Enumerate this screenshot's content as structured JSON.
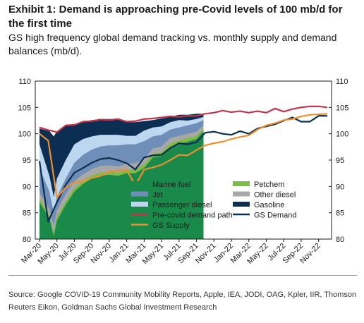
{
  "title": "Exhibit 1: Demand is approaching pre-Covid levels of 100 mb/d for the first time",
  "subtitle": "GS high frequency global demand tracking vs. monthly supply and demand balances (mb/d).",
  "source": "Source: Google COVID-19 Community Mobility Reports, Apple, IEA, JODI, OAG, Kpler, IIR, Thomson Reuters Eikon, Goldman Sachs Global Investment Research",
  "chart_data": {
    "type": "area",
    "title": "",
    "xlabel": "",
    "ylabel": "",
    "ylim": [
      80,
      110
    ],
    "yticks": [
      80,
      85,
      90,
      95,
      100,
      105,
      110
    ],
    "xlim": [
      "2020-03",
      "2022-12"
    ],
    "x_tick_labels": [
      "Mar-20",
      "May-20",
      "Jul-20",
      "Sep-20",
      "Nov-20",
      "Jan-21",
      "Mar-21",
      "May-21",
      "Jul-21",
      "Sep-21",
      "Nov-21",
      "Jan-22",
      "Mar-22",
      "May-22",
      "Jul-22",
      "Sep-22",
      "Nov-22"
    ],
    "grid": false,
    "legend": "inside-bottom-center",
    "stack_order_note": "stacked cumulative totals, bottom to top",
    "stacked_series": [
      {
        "name": "Marine fuel",
        "color": "#1a8a4a",
        "cumulative": [
          [
            "2020-03",
            87.0
          ],
          [
            "2020-04-05",
            84.0
          ],
          [
            "2020-04-20",
            80.5
          ],
          [
            "2020-05",
            83.5
          ],
          [
            "2020-06",
            86.5
          ],
          [
            "2020-07",
            89.0
          ],
          [
            "2020-08",
            90.5
          ],
          [
            "2020-09",
            91.5
          ],
          [
            "2020-10",
            92.0
          ],
          [
            "2020-11",
            92.2
          ],
          [
            "2020-12",
            92.0
          ],
          [
            "2021-01",
            92.5
          ],
          [
            "2021-02",
            92.5
          ],
          [
            "2021-03",
            93.5
          ],
          [
            "2021-04",
            95.5
          ],
          [
            "2021-05",
            95.8
          ],
          [
            "2021-06",
            97.5
          ],
          [
            "2021-07",
            98.0
          ],
          [
            "2021-08",
            98.5
          ],
          [
            "2021-09",
            99.0
          ],
          [
            "2021-09-25",
            100.5
          ]
        ]
      },
      {
        "name": "Petchem",
        "color": "#7dbb46",
        "cumulative": [
          [
            "2020-03",
            87.6
          ],
          [
            "2020-04-05",
            84.6
          ],
          [
            "2020-04-20",
            81.2
          ],
          [
            "2020-05",
            84.2
          ],
          [
            "2020-06",
            87.2
          ],
          [
            "2020-07",
            89.7
          ],
          [
            "2020-08",
            91.1
          ],
          [
            "2020-09",
            92.1
          ],
          [
            "2020-10",
            92.6
          ],
          [
            "2020-11",
            92.8
          ],
          [
            "2020-12",
            92.6
          ],
          [
            "2021-01",
            93.1
          ],
          [
            "2021-02",
            93.2
          ],
          [
            "2021-03",
            94.2
          ],
          [
            "2021-04",
            96.2
          ],
          [
            "2021-05",
            96.5
          ],
          [
            "2021-06",
            98.2
          ],
          [
            "2021-07",
            98.7
          ],
          [
            "2021-08",
            99.2
          ],
          [
            "2021-09",
            99.6
          ],
          [
            "2021-09-25",
            101.0
          ]
        ]
      },
      {
        "name": "Other diesel",
        "color": "#a8a8a8",
        "cumulative": [
          [
            "2020-03",
            88.8
          ],
          [
            "2020-04-05",
            85.8
          ],
          [
            "2020-04-20",
            82.5
          ],
          [
            "2020-05",
            85.5
          ],
          [
            "2020-06",
            88.5
          ],
          [
            "2020-07",
            91.0
          ],
          [
            "2020-08",
            92.3
          ],
          [
            "2020-09",
            93.3
          ],
          [
            "2020-10",
            93.9
          ],
          [
            "2020-11",
            94.0
          ],
          [
            "2020-12",
            93.8
          ],
          [
            "2021-01",
            94.3
          ],
          [
            "2021-02",
            94.4
          ],
          [
            "2021-03",
            95.3
          ],
          [
            "2021-04",
            97.2
          ],
          [
            "2021-05",
            97.6
          ],
          [
            "2021-06",
            99.2
          ],
          [
            "2021-07",
            99.6
          ],
          [
            "2021-08",
            100.0
          ],
          [
            "2021-09",
            100.4
          ],
          [
            "2021-09-25",
            101.6
          ]
        ]
      },
      {
        "name": "Jet",
        "color": "#6f8fb8",
        "cumulative": [
          [
            "2020-03",
            93.5
          ],
          [
            "2020-04-05",
            89.0
          ],
          [
            "2020-04-20",
            85.0
          ],
          [
            "2020-05",
            88.0
          ],
          [
            "2020-06",
            91.5
          ],
          [
            "2020-07",
            94.5
          ],
          [
            "2020-08",
            96.0
          ],
          [
            "2020-09",
            97.0
          ],
          [
            "2020-10",
            97.6
          ],
          [
            "2020-11",
            97.8
          ],
          [
            "2020-12",
            97.8
          ],
          [
            "2021-01",
            98.0
          ],
          [
            "2021-02",
            98.0
          ],
          [
            "2021-03",
            98.6
          ],
          [
            "2021-04",
            99.5
          ],
          [
            "2021-05",
            99.8
          ],
          [
            "2021-06",
            100.8
          ],
          [
            "2021-07",
            101.2
          ],
          [
            "2021-08",
            101.6
          ],
          [
            "2021-09",
            102.0
          ],
          [
            "2021-09-25",
            102.6
          ]
        ]
      },
      {
        "name": "Passenger diesel",
        "color": "#bcd7ef",
        "cumulative": [
          [
            "2020-03",
            98.0
          ],
          [
            "2020-04-05",
            92.0
          ],
          [
            "2020-04-20",
            88.0
          ],
          [
            "2020-05",
            91.5
          ],
          [
            "2020-06",
            95.0
          ],
          [
            "2020-07",
            98.0
          ],
          [
            "2020-08",
            99.0
          ],
          [
            "2020-09",
            99.5
          ],
          [
            "2020-10",
            99.8
          ],
          [
            "2020-11",
            99.8
          ],
          [
            "2020-12",
            99.8
          ],
          [
            "2021-01",
            99.6
          ],
          [
            "2021-02",
            99.6
          ],
          [
            "2021-03",
            100.6
          ],
          [
            "2021-04",
            101.2
          ],
          [
            "2021-05",
            101.4
          ],
          [
            "2021-06",
            102.2
          ],
          [
            "2021-07",
            102.6
          ],
          [
            "2021-08",
            102.5
          ],
          [
            "2021-09",
            102.8
          ],
          [
            "2021-09-25",
            103.2
          ]
        ]
      },
      {
        "name": "Gasoline",
        "color": "#0b2e52",
        "cumulative": [
          [
            "2020-03",
            101.0
          ],
          [
            "2020-04-05",
            100.5
          ],
          [
            "2020-04-20",
            99.5
          ],
          [
            "2020-05",
            100.5
          ],
          [
            "2020-06",
            101.5
          ],
          [
            "2020-07",
            101.8
          ],
          [
            "2020-08",
            102.3
          ],
          [
            "2020-09",
            102.6
          ],
          [
            "2020-10",
            102.8
          ],
          [
            "2020-11",
            102.8
          ],
          [
            "2020-12",
            102.8
          ],
          [
            "2021-01",
            102.2
          ],
          [
            "2021-02",
            102.2
          ],
          [
            "2021-03",
            102.4
          ],
          [
            "2021-04",
            102.6
          ],
          [
            "2021-05",
            102.9
          ],
          [
            "2021-06",
            103.2
          ],
          [
            "2021-07",
            103.6
          ],
          [
            "2021-08",
            103.6
          ],
          [
            "2021-09",
            103.8
          ],
          [
            "2021-09-25",
            103.8
          ]
        ]
      }
    ],
    "line_series": [
      {
        "name": "Pre-covid demand path",
        "color": "#c0354a",
        "points": [
          [
            "2020-03",
            101.2
          ],
          [
            "2020-04",
            100.7
          ],
          [
            "2020-05",
            100.3
          ],
          [
            "2020-06",
            101.6
          ],
          [
            "2020-07",
            101.7
          ],
          [
            "2020-08",
            102.3
          ],
          [
            "2020-09",
            102.4
          ],
          [
            "2020-10",
            102.7
          ],
          [
            "2020-11",
            102.6
          ],
          [
            "2020-12",
            102.8
          ],
          [
            "2021-01",
            102.3
          ],
          [
            "2021-02",
            102.4
          ],
          [
            "2021-03",
            102.8
          ],
          [
            "2021-04",
            102.9
          ],
          [
            "2021-05",
            103.1
          ],
          [
            "2021-06",
            103.3
          ],
          [
            "2021-07",
            103.2
          ],
          [
            "2021-08",
            103.4
          ],
          [
            "2021-09",
            103.4
          ],
          [
            "2021-10",
            103.8
          ],
          [
            "2021-11",
            104.0
          ],
          [
            "2021-12",
            104.4
          ],
          [
            "2022-01",
            104.1
          ],
          [
            "2022-02",
            104.3
          ],
          [
            "2022-03",
            104.0
          ],
          [
            "2022-04",
            104.3
          ],
          [
            "2022-05",
            104.0
          ],
          [
            "2022-06",
            104.8
          ],
          [
            "2022-07",
            104.2
          ],
          [
            "2022-08",
            104.7
          ],
          [
            "2022-09",
            105.0
          ],
          [
            "2022-10",
            105.2
          ],
          [
            "2022-11",
            105.2
          ],
          [
            "2022-12",
            105.0
          ]
        ]
      },
      {
        "name": "GS Demand",
        "color": "#0b2e52",
        "points": [
          [
            "2020-03",
            94.8
          ],
          [
            "2020-04",
            83.3
          ],
          [
            "2020-05",
            87.0
          ],
          [
            "2020-06",
            90.3
          ],
          [
            "2020-07",
            92.6
          ],
          [
            "2020-08",
            93.5
          ],
          [
            "2020-09",
            94.5
          ],
          [
            "2020-10",
            95.2
          ],
          [
            "2020-11",
            95.4
          ],
          [
            "2020-12",
            95.0
          ],
          [
            "2021-01",
            94.4
          ],
          [
            "2021-02",
            93.2
          ],
          [
            "2021-03",
            95.5
          ],
          [
            "2021-04",
            95.9
          ],
          [
            "2021-05",
            96.0
          ],
          [
            "2021-06",
            97.3
          ],
          [
            "2021-07",
            98.2
          ],
          [
            "2021-08",
            98.0
          ],
          [
            "2021-09",
            98.4
          ],
          [
            "2021-10",
            100.2
          ],
          [
            "2021-11",
            100.4
          ],
          [
            "2021-12",
            100.0
          ],
          [
            "2022-01",
            99.8
          ],
          [
            "2022-02",
            100.5
          ],
          [
            "2022-03",
            100.0
          ],
          [
            "2022-04",
            101.0
          ],
          [
            "2022-05",
            101.4
          ],
          [
            "2022-06",
            101.8
          ],
          [
            "2022-07",
            102.5
          ],
          [
            "2022-08",
            103.1
          ],
          [
            "2022-09",
            102.3
          ],
          [
            "2022-10",
            102.3
          ],
          [
            "2022-11",
            103.4
          ],
          [
            "2022-12",
            103.4
          ]
        ]
      },
      {
        "name": "GS Supply",
        "color": "#ee8f2f",
        "points": [
          [
            "2020-03",
            100.0
          ],
          [
            "2020-04",
            98.7
          ],
          [
            "2020-05",
            87.9
          ],
          [
            "2020-06",
            89.8
          ],
          [
            "2020-07",
            90.8
          ],
          [
            "2020-08",
            91.0
          ],
          [
            "2020-09",
            91.6
          ],
          [
            "2020-10",
            92.0
          ],
          [
            "2020-11",
            92.8
          ],
          [
            "2020-12",
            93.0
          ],
          [
            "2021-01",
            93.1
          ],
          [
            "2021-02",
            90.2
          ],
          [
            "2021-03",
            93.2
          ],
          [
            "2021-04",
            93.6
          ],
          [
            "2021-05",
            94.1
          ],
          [
            "2021-06",
            95.0
          ],
          [
            "2021-07",
            96.0
          ],
          [
            "2021-08",
            95.9
          ],
          [
            "2021-09",
            96.9
          ],
          [
            "2021-10",
            97.8
          ],
          [
            "2021-11",
            98.2
          ],
          [
            "2021-12",
            98.5
          ],
          [
            "2022-01",
            99.0
          ],
          [
            "2022-02",
            99.4
          ],
          [
            "2022-03",
            99.7
          ],
          [
            "2022-04",
            100.8
          ],
          [
            "2022-05",
            101.6
          ],
          [
            "2022-06",
            102.0
          ],
          [
            "2022-07",
            102.6
          ],
          [
            "2022-08",
            102.8
          ],
          [
            "2022-09",
            103.3
          ],
          [
            "2022-10",
            103.6
          ],
          [
            "2022-11",
            103.7
          ],
          [
            "2022-12",
            103.8
          ]
        ]
      }
    ],
    "legend_entries": [
      {
        "label": "Marine fuel",
        "color": "#1a8a4a",
        "kind": "area"
      },
      {
        "label": "Petchem",
        "color": "#7dbb46",
        "kind": "area"
      },
      {
        "label": "Jet",
        "color": "#6f8fb8",
        "kind": "area"
      },
      {
        "label": "Other diesel",
        "color": "#a8a8a8",
        "kind": "area"
      },
      {
        "label": "Passenger diesel",
        "color": "#bcd7ef",
        "kind": "area"
      },
      {
        "label": "Gasoline",
        "color": "#0b2e52",
        "kind": "area"
      },
      {
        "label": "Pre-covid demand path",
        "color": "#c0354a",
        "kind": "line"
      },
      {
        "label": "GS Demand",
        "color": "#0b2e52",
        "kind": "line"
      },
      {
        "label": "GS Supply",
        "color": "#ee8f2f",
        "kind": "line"
      }
    ]
  }
}
